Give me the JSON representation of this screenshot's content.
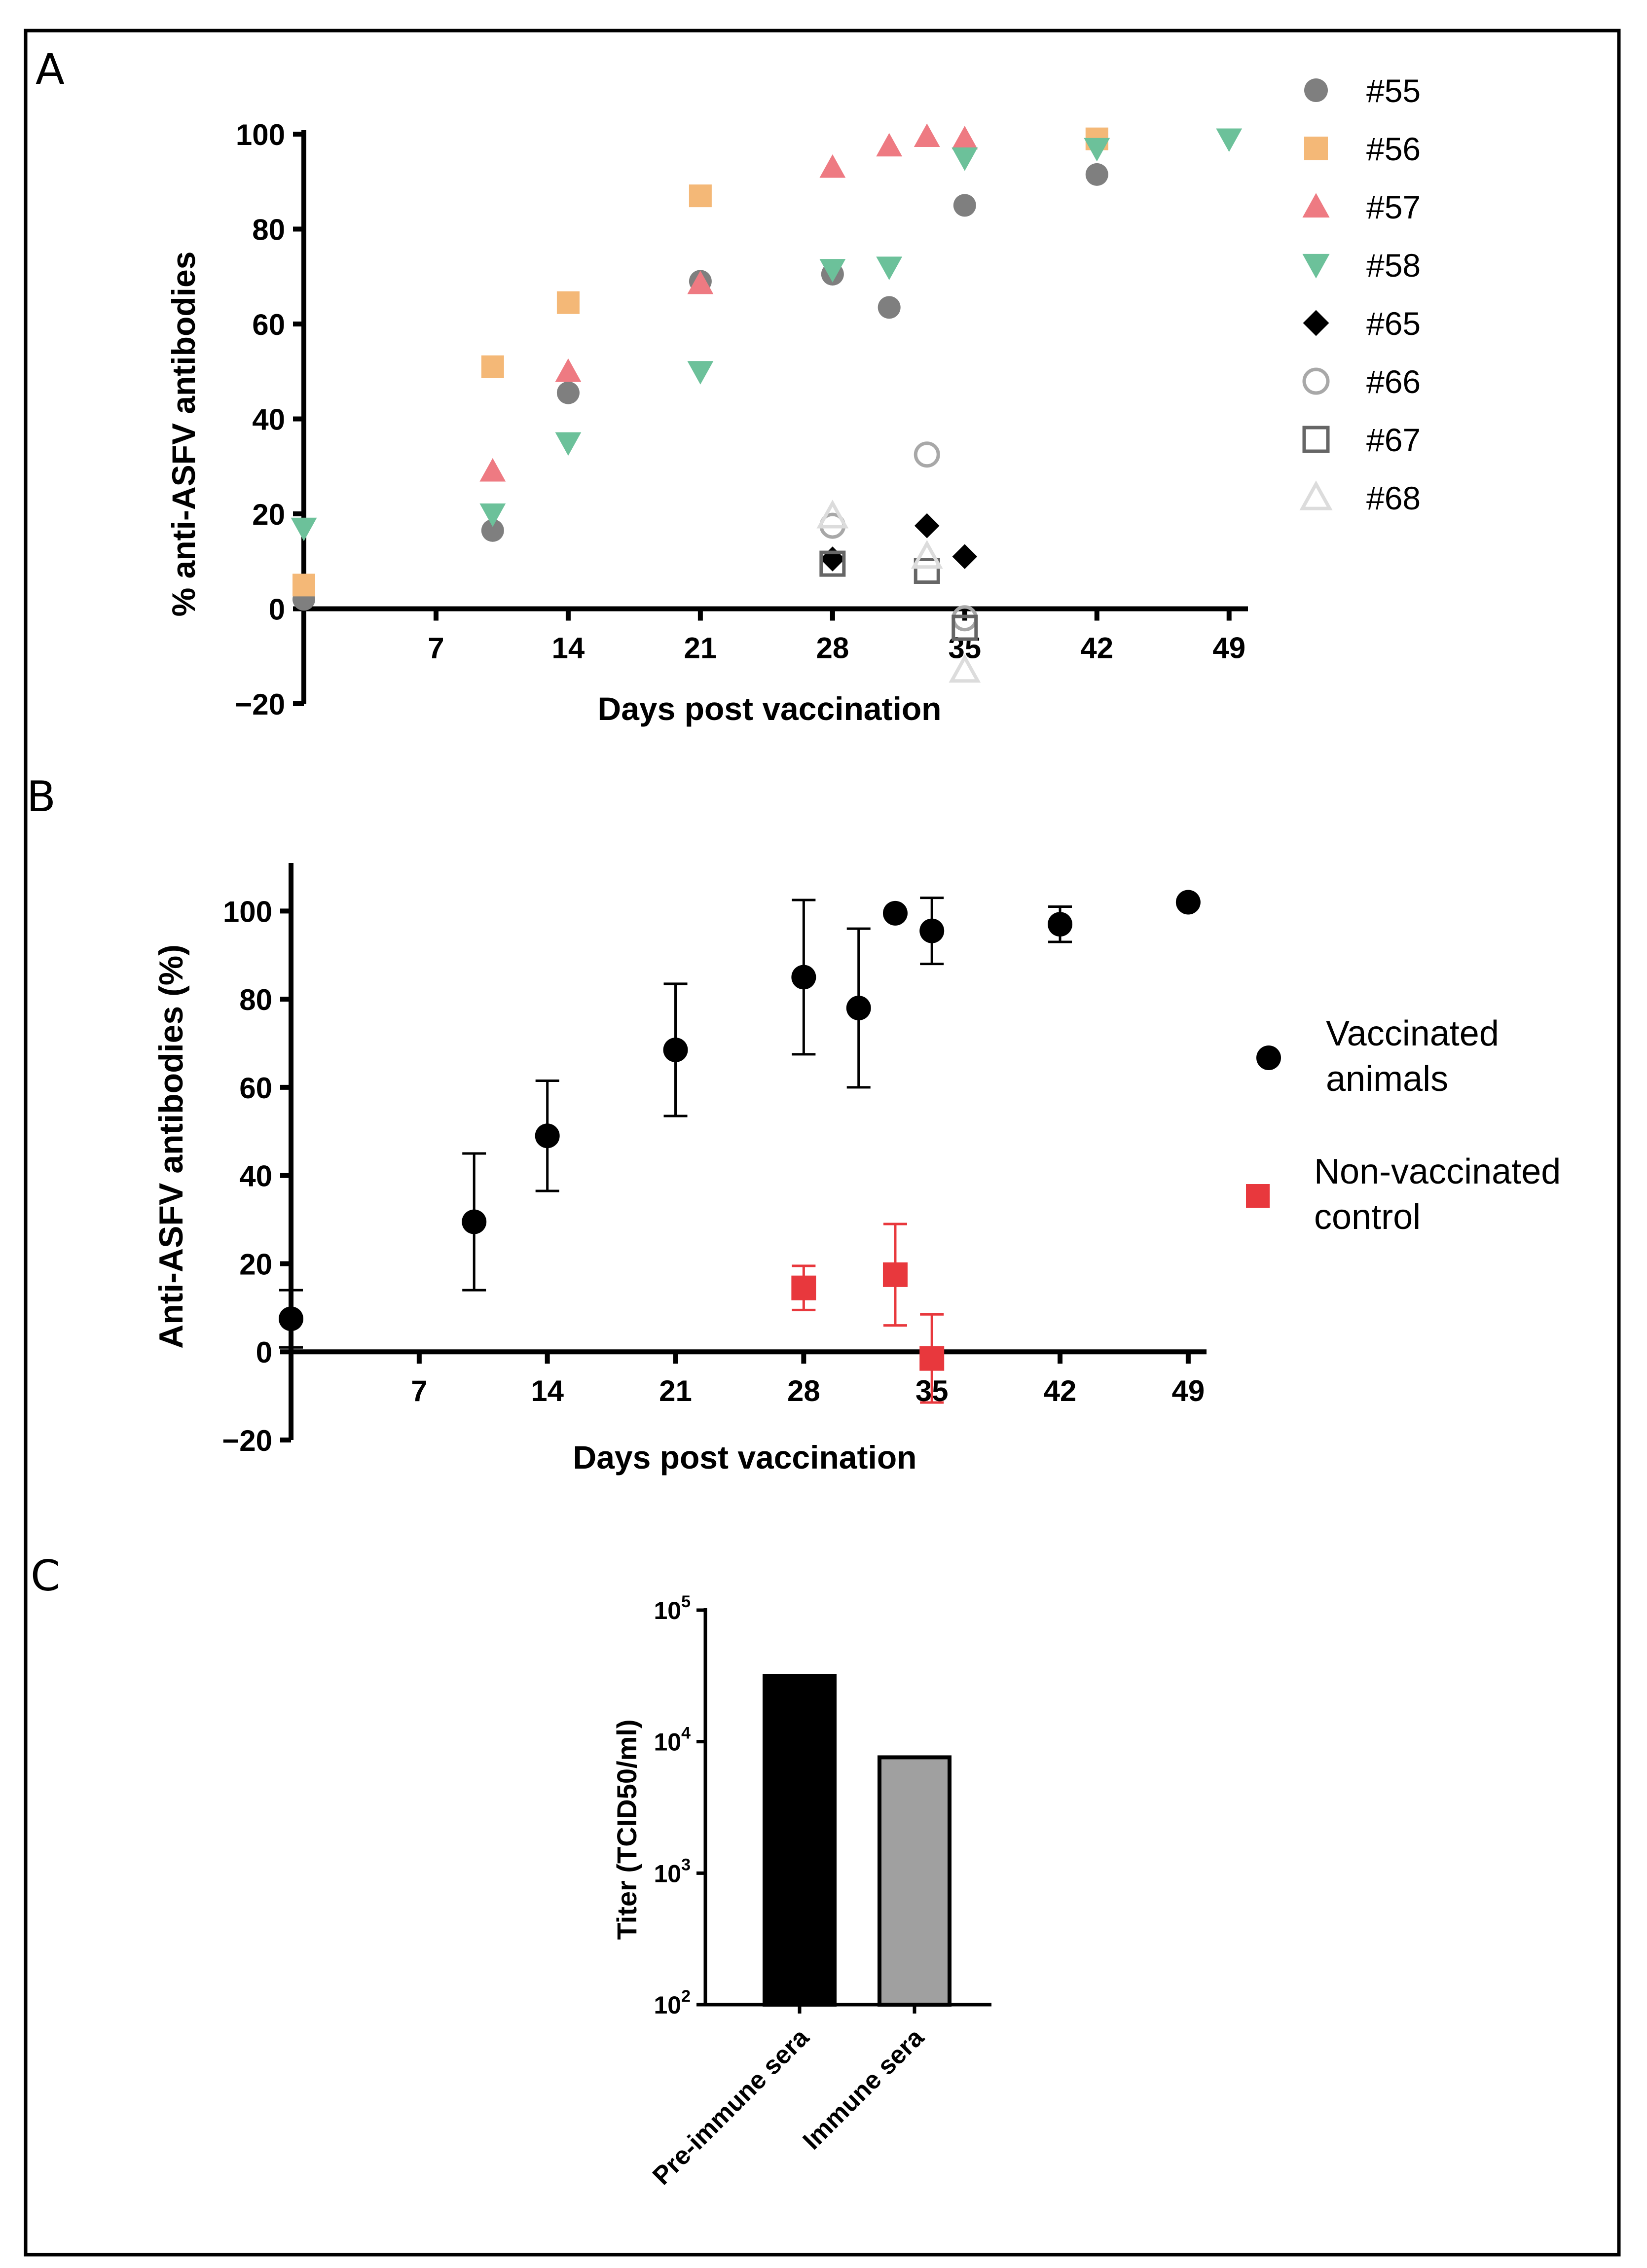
{
  "chart_data": [
    {
      "panel": "A",
      "type": "scatter",
      "xlabel": "Days post vaccination",
      "ylabel": "% anti-ASFV antibodies",
      "xticks": [
        "7",
        "14",
        "21",
        "28",
        "35",
        "42",
        "49"
      ],
      "yticks": [
        "−20",
        "0",
        "20",
        "40",
        "60",
        "80",
        "100"
      ],
      "xlim": [
        0,
        50
      ],
      "ylim": [
        -20,
        100
      ],
      "series": [
        {
          "name": "#55",
          "color": "#7f7f7f",
          "marker": "circle",
          "filled": true,
          "points": [
            [
              0,
              2
            ],
            [
              10,
              16.5
            ],
            [
              14,
              45.5
            ],
            [
              21,
              69
            ],
            [
              28,
              70.5
            ],
            [
              31,
              63.5
            ],
            [
              35,
              85
            ],
            [
              42,
              91.5
            ]
          ]
        },
        {
          "name": "#56",
          "color": "#f4b877",
          "marker": "square",
          "filled": true,
          "points": [
            [
              0,
              5
            ],
            [
              10,
              51
            ],
            [
              14,
              64.5
            ],
            [
              21,
              87
            ],
            [
              42,
              99
            ]
          ]
        },
        {
          "name": "#57",
          "color": "#ee7a82",
          "marker": "triangle-up",
          "filled": true,
          "points": [
            [
              10,
              29
            ],
            [
              14,
              50
            ],
            [
              21,
              68.5
            ],
            [
              28,
              93
            ],
            [
              31,
              97.5
            ],
            [
              33,
              99.5
            ],
            [
              35,
              99
            ]
          ]
        },
        {
          "name": "#58",
          "color": "#6cc19a",
          "marker": "triangle-down",
          "filled": true,
          "points": [
            [
              0,
              17
            ],
            [
              10,
              20
            ],
            [
              14,
              35
            ],
            [
              21,
              50
            ],
            [
              28,
              71.5
            ],
            [
              31,
              72
            ],
            [
              35,
              95
            ],
            [
              42,
              97
            ],
            [
              49,
              99
            ]
          ]
        },
        {
          "name": "#65",
          "color": "#000000",
          "marker": "diamond",
          "filled": true,
          "points": [
            [
              28,
              10.5
            ],
            [
              33,
              17.5
            ],
            [
              35,
              11
            ]
          ]
        },
        {
          "name": "#66",
          "color": "#a8a8a8",
          "marker": "circle",
          "filled": false,
          "points": [
            [
              28,
              17.5
            ],
            [
              33,
              32.5
            ],
            [
              35,
              -2
            ]
          ]
        },
        {
          "name": "#67",
          "color": "#666666",
          "marker": "square",
          "filled": false,
          "points": [
            [
              28,
              9.5
            ],
            [
              33,
              8
            ],
            [
              35,
              -4
            ]
          ]
        },
        {
          "name": "#68",
          "color": "#dcdcdc",
          "marker": "triangle-up",
          "filled": false,
          "points": [
            [
              28,
              19.5
            ],
            [
              33,
              11
            ],
            [
              35,
              -13
            ]
          ]
        }
      ]
    },
    {
      "panel": "B",
      "type": "scatter",
      "xlabel": "Days post vaccination",
      "ylabel": "Anti-ASFV antibodies (%)",
      "xticks": [
        "7",
        "14",
        "21",
        "28",
        "35",
        "42",
        "49"
      ],
      "yticks": [
        "−20",
        "0",
        "20",
        "40",
        "60",
        "80",
        "100"
      ],
      "xlim": [
        0,
        50
      ],
      "ylim": [
        -20,
        110
      ],
      "series": [
        {
          "name": "Vaccinated animals",
          "legend_lines": [
            "Vaccinated",
            "animals"
          ],
          "color": "#000000",
          "marker": "circle",
          "points": [
            [
              0,
              7.5
            ],
            [
              10,
              29.5
            ],
            [
              14,
              49
            ],
            [
              21,
              68.5
            ],
            [
              28,
              85
            ],
            [
              31,
              78
            ],
            [
              33,
              99.5
            ],
            [
              35,
              95.5
            ],
            [
              42,
              97
            ],
            [
              49,
              102
            ]
          ],
          "errors": [
            6.5,
            15.5,
            12.5,
            15,
            17.5,
            18,
            0,
            7.5,
            4,
            0
          ]
        },
        {
          "name": "Non-vaccinated control",
          "legend_lines": [
            "Non-vaccinated",
            "control"
          ],
          "color": "#e8383d",
          "marker": "square",
          "points": [
            [
              28,
              14.5
            ],
            [
              33,
              17.5
            ],
            [
              35,
              -1.5
            ]
          ],
          "errors": [
            5,
            11.5,
            10
          ]
        }
      ]
    },
    {
      "panel": "C",
      "type": "bar",
      "yscale": "log",
      "ylabel": "Titer  (TCID50/ml)",
      "ylim": [
        100,
        100000
      ],
      "yticks": [
        {
          "base": "10",
          "exp": "5",
          "value": 100000
        },
        {
          "base": "10",
          "exp": "4",
          "value": 10000
        },
        {
          "base": "10",
          "exp": "3",
          "value": 1000
        },
        {
          "base": "10",
          "exp": "2",
          "value": 100
        }
      ],
      "categories": [
        "Pre-immune sera",
        "Immune sera"
      ],
      "values": [
        31600,
        7600
      ],
      "colors": [
        "#000000",
        "#a0a0a0"
      ]
    }
  ]
}
